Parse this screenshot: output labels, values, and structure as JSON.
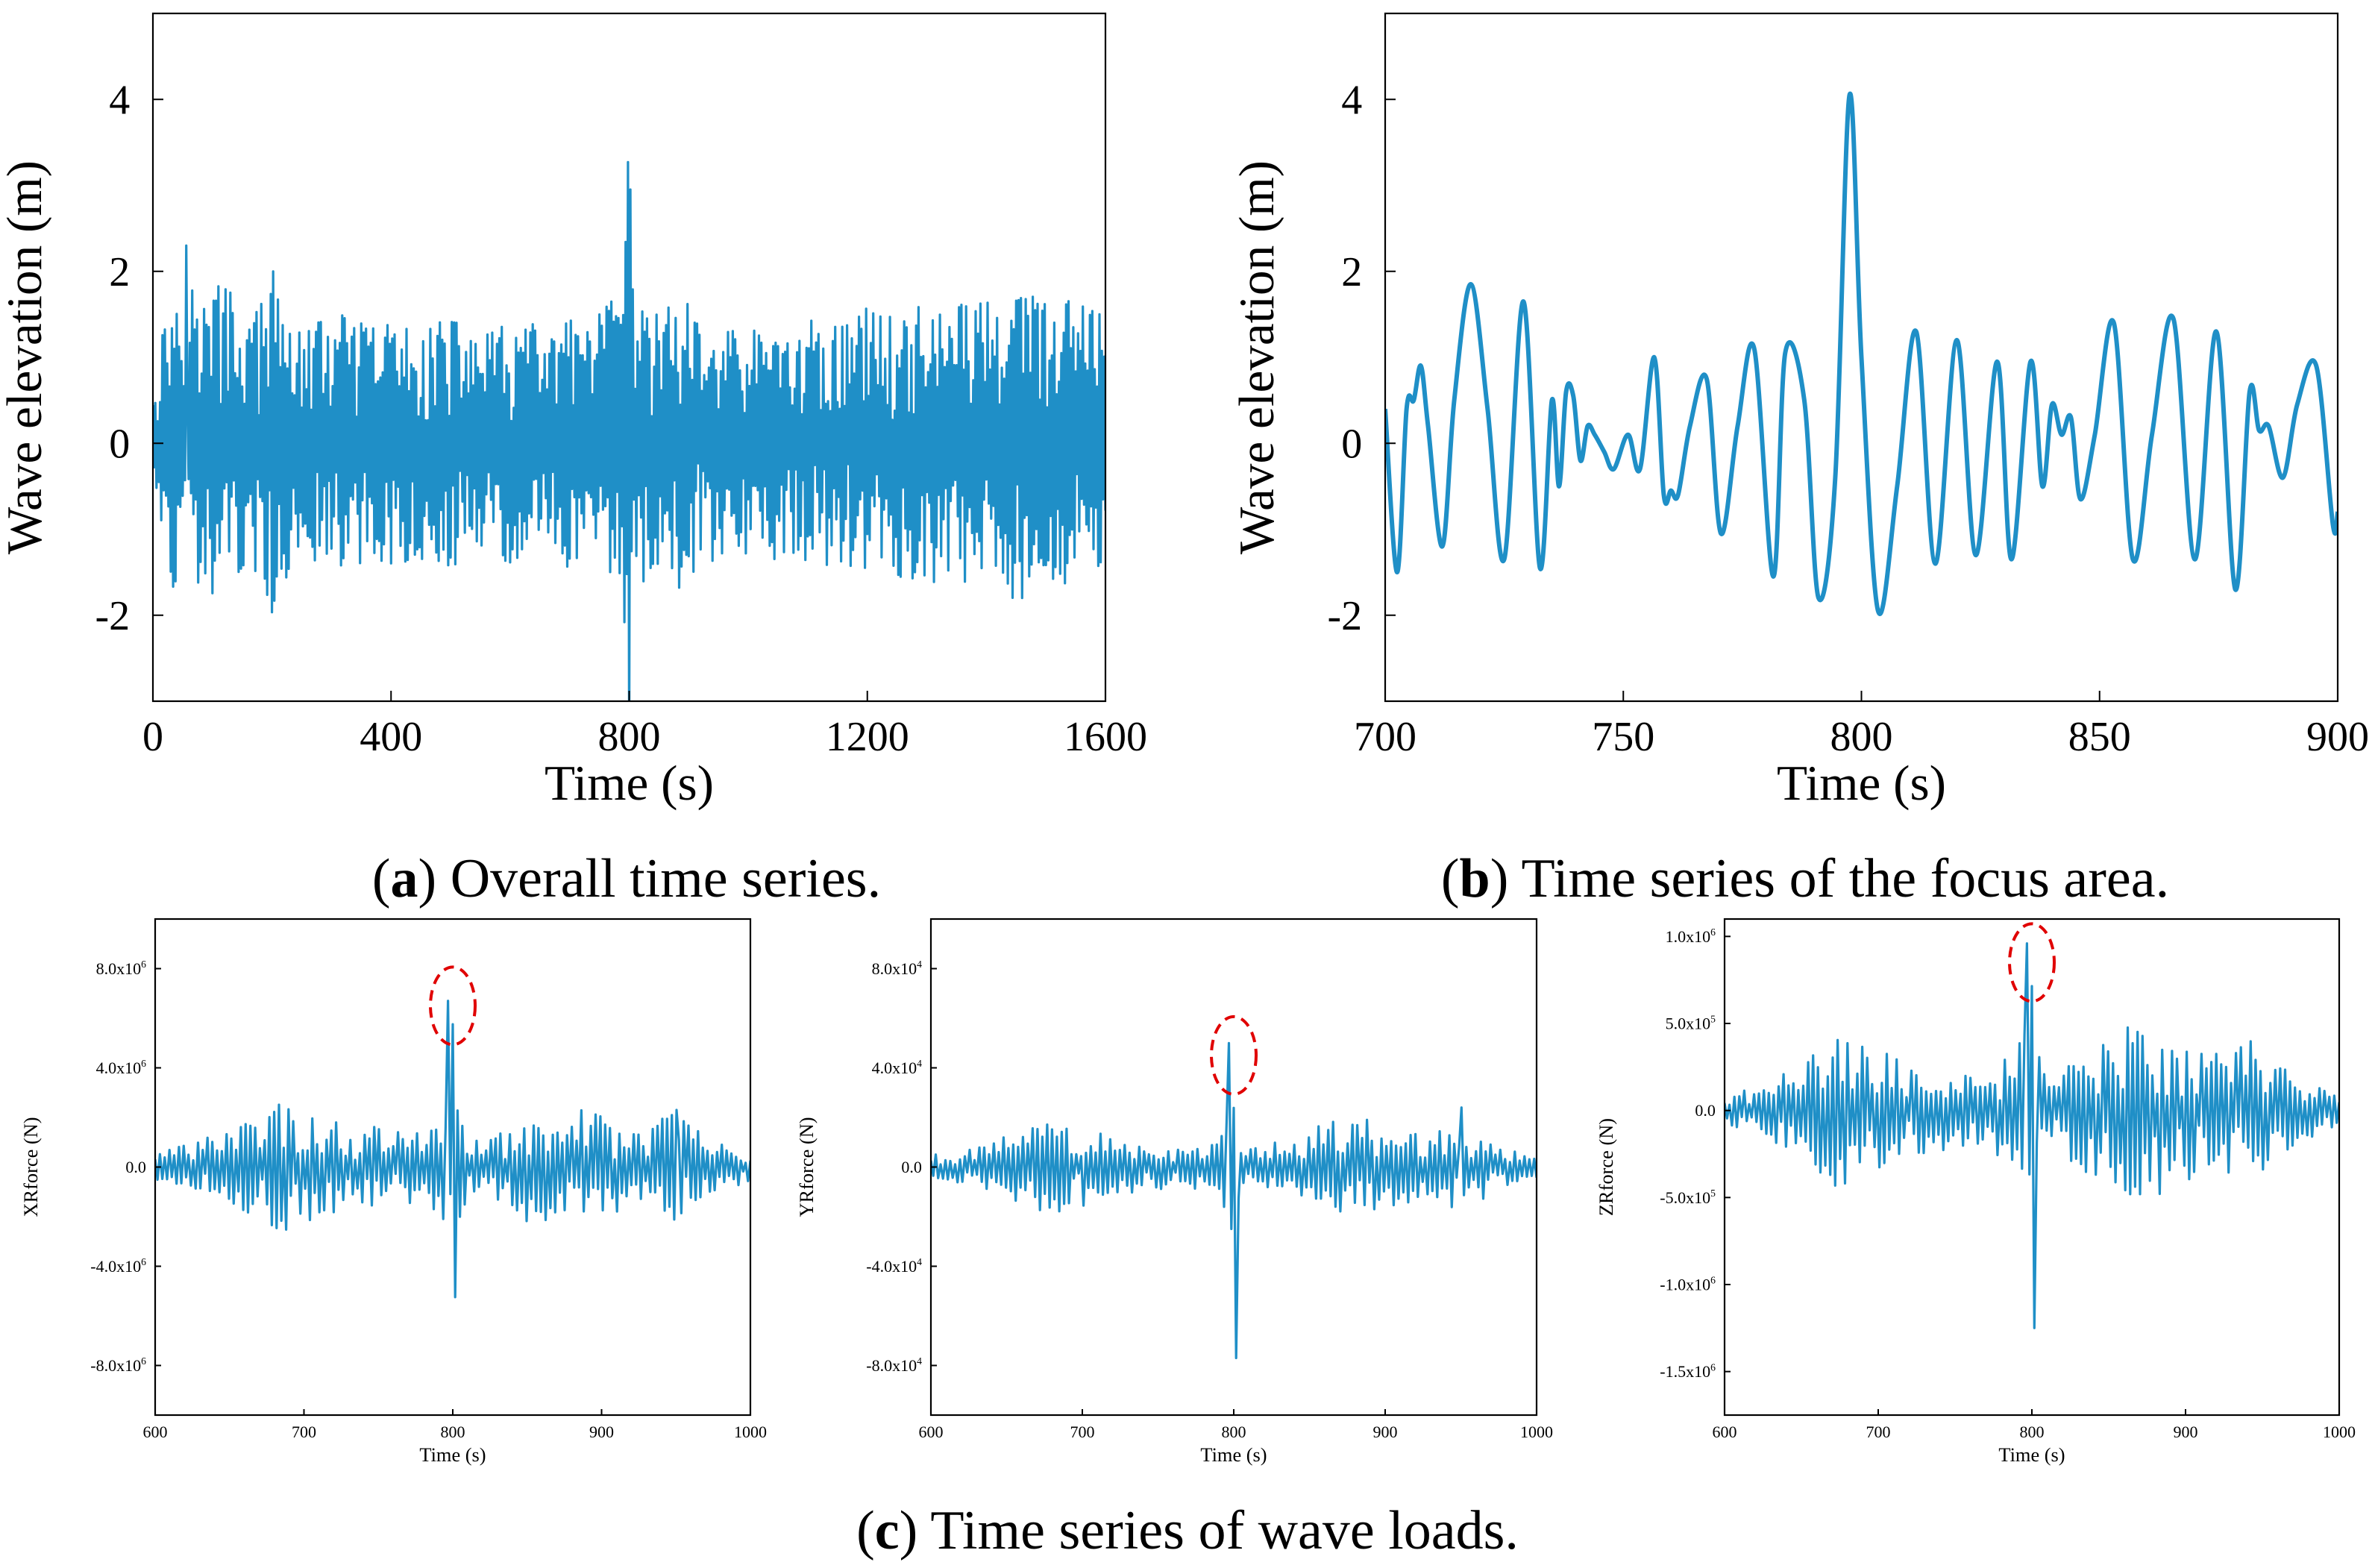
{
  "captions": [
    {
      "letter": "a",
      "open": "(",
      "close": ")",
      "text": " Overall time series."
    },
    {
      "letter": "b",
      "open": "(",
      "close": ")",
      "text": " Time series of the focus area."
    },
    {
      "letter": "c",
      "open": "(",
      "close": ")",
      "text": " Time series of wave loads."
    }
  ],
  "style": {
    "line_color": "#1f8fc7",
    "highlight_color": "#e00000",
    "axis_color": "#000000"
  },
  "chart_data": [
    {
      "id": "a",
      "type": "line",
      "xlabel": "Time (s)",
      "ylabel": "Wave elevation (m)",
      "xlim": [
        0,
        1600
      ],
      "ylim": [
        -3,
        5
      ],
      "xticks": [
        0,
        400,
        800,
        1200,
        1600
      ],
      "xtick_labels": [
        "0",
        "400",
        "800",
        "1200",
        "1600"
      ],
      "yticks": [
        -2,
        0,
        2,
        4
      ],
      "ytick_labels": [
        "-2",
        "0",
        "2",
        "4"
      ],
      "grid": false,
      "series": [
        {
          "dense": true,
          "x_step": 2,
          "x": [
            0,
            40,
            48,
            56,
            80,
            100,
            120,
            140,
            160,
            180,
            200,
            204,
            240,
            260,
            280,
            320,
            340,
            360,
            400,
            440,
            480,
            520,
            560,
            600,
            640,
            680,
            700,
            720,
            760,
            790,
            796,
            800,
            804,
            810,
            840,
            880,
            920,
            960,
            1000,
            1040,
            1080,
            1120,
            1160,
            1200,
            1240,
            1280,
            1320,
            1360,
            1400,
            1440,
            1480,
            1520,
            1560,
            1600
          ],
          "y": [
            0.9,
            2.1,
            -1.6,
            2.3,
            1.6,
            -1.9,
            1.9,
            -1.7,
            1.5,
            -1.6,
            2.1,
            -1.9,
            1.4,
            -1.3,
            1.5,
            -1.5,
            1.4,
            -1.4,
            1.5,
            -1.3,
            1.5,
            -1.4,
            1.3,
            -1.4,
            1.4,
            -1.3,
            1.5,
            -1.3,
            1.6,
            -1.9,
            3.1,
            4.1,
            -2.0,
            1.7,
            -1.5,
            1.8,
            -1.4,
            1.4,
            -1.3,
            1.4,
            -1.3,
            1.5,
            -1.4,
            1.6,
            -1.5,
            1.7,
            -1.6,
            1.7,
            -1.7,
            1.8,
            -1.8,
            1.7,
            -1.6,
            1.5
          ]
        }
      ]
    },
    {
      "id": "b",
      "type": "line",
      "xlabel": "Time (s)",
      "ylabel": "Wave elevation (m)",
      "xlim": [
        700,
        900
      ],
      "ylim": [
        -3,
        5
      ],
      "xticks": [
        700,
        750,
        800,
        850,
        900
      ],
      "xtick_labels": [
        "700",
        "750",
        "800",
        "850",
        "900"
      ],
      "yticks": [
        -2,
        0,
        2,
        4
      ],
      "ytick_labels": [
        "-2",
        "0",
        "2",
        "4"
      ],
      "grid": false,
      "series": [
        {
          "x": [
            700,
            702.5,
            704.5,
            706,
            707.5,
            709,
            712,
            714.5,
            718,
            721.5,
            725,
            729,
            732.5,
            735,
            736.5,
            738,
            739.5,
            741,
            742.5,
            744,
            746,
            748,
            751,
            753.5,
            756.5,
            758.5,
            760,
            761.5,
            764,
            767.5,
            770.5,
            774,
            777.5,
            781.5,
            784,
            788,
            791,
            794.5,
            797.5,
            800,
            803.5,
            807.5,
            811.5,
            815.5,
            820,
            824,
            828.5,
            831.5,
            835.5,
            838,
            840,
            842,
            844,
            846,
            849,
            853,
            857,
            861,
            865.5,
            870,
            874.5,
            878.5,
            881.5,
            883.5,
            885.5,
            888.5,
            891.5,
            895.5,
            899,
            900
          ],
          "y": [
            0.4,
            -1.5,
            0.4,
            0.5,
            0.9,
            0.2,
            -1.2,
            0.5,
            1.85,
            0.4,
            -1.35,
            1.65,
            -1.45,
            0.5,
            -0.5,
            0.6,
            0.55,
            -0.2,
            0.2,
            0.1,
            -0.1,
            -0.3,
            0.1,
            -0.3,
            1.0,
            -0.6,
            -0.55,
            -0.6,
            0.2,
            0.75,
            -1.05,
            0.2,
            1.1,
            -1.55,
            1.05,
            0.5,
            -1.8,
            -0.4,
            4.05,
            1.0,
            -1.95,
            -0.5,
            1.3,
            -1.4,
            1.2,
            -1.3,
            0.95,
            -1.35,
            0.95,
            -0.5,
            0.45,
            0.1,
            0.3,
            -0.65,
            0.1,
            1.4,
            -1.35,
            0.1,
            1.45,
            -1.35,
            1.3,
            -1.7,
            0.6,
            0.15,
            0.2,
            -0.4,
            0.45,
            0.9,
            -0.95,
            -0.8
          ]
        }
      ]
    },
    {
      "id": "c1",
      "type": "line",
      "xlabel": "Time (s)",
      "ylabel": "XRforce (N)",
      "xlim": [
        600,
        1000
      ],
      "ylim": [
        -10000000.0,
        10000000.0
      ],
      "xticks": [
        600,
        700,
        800,
        900,
        1000
      ],
      "xtick_labels": [
        "600",
        "700",
        "800",
        "900",
        "1000"
      ],
      "yticks": [
        -8000000.0,
        -4000000.0,
        0,
        4000000.0,
        8000000.0
      ],
      "ytick_labels": [
        "-8.0x10",
        "-4.0x10",
        "0.0",
        "4.0x10",
        "8.0x10"
      ],
      "ytick_exponents": [
        "6",
        "6",
        "",
        "6",
        "6"
      ],
      "grid": false,
      "highlight": {
        "x": 800,
        "y": 6500000.0
      },
      "series": [
        {
          "dense": true,
          "x_step": 1.6,
          "x": [
            600,
            620,
            640,
            660,
            680,
            700,
            720,
            740,
            760,
            780,
            790,
            795,
            797,
            798,
            799.5,
            801,
            803,
            806,
            812,
            830,
            850,
            870,
            890,
            910,
            930,
            950,
            970,
            990,
            1000
          ],
          "y": [
            600000.0,
            900000.0,
            1300000.0,
            1900000.0,
            2700000.0,
            2300000.0,
            1900000.0,
            1700000.0,
            1500000.0,
            1500000.0,
            1800000.0,
            3000000.0,
            6700000.0,
            -3600000.0,
            6200000.0,
            -6900000.0,
            2900000.0,
            1800000.0,
            1000000.0,
            1300000.0,
            2200000.0,
            2500000.0,
            2300000.0,
            1900000.0,
            1600000.0,
            2300000.0,
            1400000.0,
            800000.0,
            600000.0
          ]
        }
      ]
    },
    {
      "id": "c2",
      "type": "line",
      "xlabel": "Time (s)",
      "ylabel": "YRforce (N)",
      "xlim": [
        600,
        1000
      ],
      "ylim": [
        -100000.0,
        100000.0
      ],
      "xticks": [
        600,
        700,
        800,
        900,
        1000
      ],
      "xtick_labels": [
        "600",
        "700",
        "800",
        "900",
        "1000"
      ],
      "yticks": [
        -80000.0,
        -40000.0,
        0,
        40000.0,
        80000.0
      ],
      "ytick_labels": [
        "-8.0x10",
        "-4.0x10",
        "0.0",
        "4.0x10",
        "8.0x10"
      ],
      "ytick_exponents": [
        "4",
        "4",
        "",
        "4",
        "4"
      ],
      "grid": false,
      "highlight": {
        "x": 800,
        "y": 45000.0
      },
      "series": [
        {
          "dense": true,
          "x_step": 1.6,
          "x": [
            600,
            620,
            640,
            660,
            680,
            700,
            720,
            740,
            760,
            780,
            790,
            795,
            797,
            798,
            799.5,
            801,
            803,
            806,
            812,
            830,
            850,
            870,
            890,
            910,
            930,
            950,
            970,
            990,
            1000
          ],
          "y": [
            5000.0,
            7000.0,
            10000.0,
            15000.0,
            19000.0,
            16000.0,
            12000.0,
            10000.0,
            9000.0,
            10000.0,
            13000.0,
            25000.0,
            50000.0,
            -20000.0,
            46000.0,
            -77000.0,
            19000.0,
            10000.0,
            8000.0,
            12000.0,
            16000.0,
            21000.0,
            19000.0,
            15000.0,
            12000.0,
            24000.0,
            9000.0,
            6000.0,
            5000.0
          ]
        }
      ]
    },
    {
      "id": "c3",
      "type": "line",
      "xlabel": "Time (s)",
      "ylabel": "ZRforce (N)",
      "xlim": [
        600,
        1000
      ],
      "ylim": [
        -1750000.0,
        1100000.0
      ],
      "xticks": [
        600,
        700,
        800,
        900,
        1000
      ],
      "xtick_labels": [
        "600",
        "700",
        "800",
        "900",
        "1000"
      ],
      "yticks": [
        -1500000.0,
        -1000000.0,
        -500000.0,
        0,
        500000.0,
        1000000.0
      ],
      "ytick_labels": [
        "-1.5x10",
        "-1.0x10",
        "-5.0x10",
        "0.0",
        "5.0x10",
        "1.0x10"
      ],
      "ytick_exponents": [
        "6",
        "6",
        "5",
        "",
        "5",
        "6"
      ],
      "grid": false,
      "highlight": {
        "x": 800,
        "y": 850000.0
      },
      "series": [
        {
          "dense": true,
          "x_step": 1.6,
          "x": [
            600,
            620,
            640,
            660,
            680,
            700,
            720,
            740,
            760,
            780,
            790,
            795,
            797,
            798,
            799.5,
            801,
            803,
            806,
            812,
            830,
            850,
            870,
            890,
            910,
            930,
            950,
            970,
            990,
            1000
          ],
          "y": [
            80000.0,
            140000.0,
            220000.0,
            350000.0,
            500000.0,
            380000.0,
            270000.0,
            230000.0,
            230000.0,
            280000.0,
            330000.0,
            540000.0,
            960000.0,
            -300000.0,
            860000.0,
            -1250000.0,
            480000.0,
            320000.0,
            220000.0,
            320000.0,
            450000.0,
            500000.0,
            470000.0,
            420000.0,
            350000.0,
            430000.0,
            200000.0,
            120000.0,
            80000.0
          ]
        }
      ]
    }
  ]
}
